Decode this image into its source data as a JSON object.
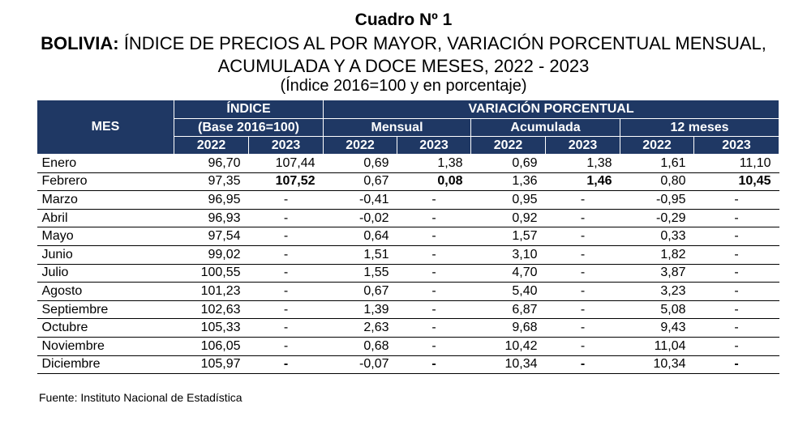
{
  "title": "Cuadro Nº 1",
  "subtitle_bold": "BOLIVIA:",
  "subtitle_rest": " ÍNDICE DE PRECIOS AL POR MAYOR, VARIACIÓN PORCENTUAL MENSUAL,",
  "subtitle_line2": "ACUMULADA Y A DOCE MESES, 2022 - 2023",
  "subtitle_line3": "(Índice 2016=100 y en porcentaje)",
  "header": {
    "mes": "MES",
    "indice": "ÍNDICE",
    "indice_base": "(Base 2016=100)",
    "variacion": "VARIACIÓN PORCENTUAL",
    "mensual": "Mensual",
    "acumulada": "Acumulada",
    "doce": "12 meses",
    "years": [
      "2022",
      "2023",
      "2022",
      "2023",
      "2022",
      "2023",
      "2022",
      "2023"
    ]
  },
  "rows": [
    {
      "mes": "Enero",
      "v": [
        "96,70",
        "107,44",
        "0,69",
        "1,38",
        "0,69",
        "1,38",
        "1,61",
        "11,10"
      ]
    },
    {
      "mes": "Febrero",
      "v": [
        "97,35",
        "107,52",
        "0,67",
        "0,08",
        "1,36",
        "1,46",
        "0,80",
        "10,45"
      ]
    },
    {
      "mes": "Marzo",
      "v": [
        "96,95",
        "-",
        "-0,41",
        "-",
        "0,95",
        "-",
        "-0,95",
        "-"
      ]
    },
    {
      "mes": "Abril",
      "v": [
        "96,93",
        "-",
        "-0,02",
        "-",
        "0,92",
        "-",
        "-0,29",
        "-"
      ]
    },
    {
      "mes": "Mayo",
      "v": [
        "97,54",
        "-",
        "0,64",
        "-",
        "1,57",
        "-",
        "0,33",
        "-"
      ]
    },
    {
      "mes": "Junio",
      "v": [
        "99,02",
        "-",
        "1,51",
        "-",
        "3,10",
        "-",
        "1,82",
        "-"
      ]
    },
    {
      "mes": "Julio",
      "v": [
        "100,55",
        "-",
        "1,55",
        "-",
        "4,70",
        "-",
        "3,87",
        "-"
      ]
    },
    {
      "mes": "Agosto",
      "v": [
        "101,23",
        "-",
        "0,67",
        "-",
        "5,40",
        "-",
        "3,23",
        "-"
      ]
    },
    {
      "mes": "Septiembre",
      "v": [
        "102,63",
        "-",
        "1,39",
        "-",
        "6,87",
        "-",
        "5,08",
        "-"
      ]
    },
    {
      "mes": "Octubre",
      "v": [
        "105,33",
        "-",
        "2,63",
        "-",
        "9,68",
        "-",
        "9,43",
        "-"
      ]
    },
    {
      "mes": "Noviembre",
      "v": [
        "106,05",
        "-",
        "0,68",
        "-",
        "10,42",
        "-",
        "11,04",
        "-"
      ]
    },
    {
      "mes": "Diciembre",
      "v": [
        "105,97",
        "-",
        "-0,07",
        "-",
        "10,34",
        "-",
        "10,34",
        "-"
      ]
    }
  ],
  "source": "Fuente: Instituto Nacional de Estadística",
  "colors": {
    "header_bg": "#1f3864",
    "header_text": "#ffffff"
  }
}
